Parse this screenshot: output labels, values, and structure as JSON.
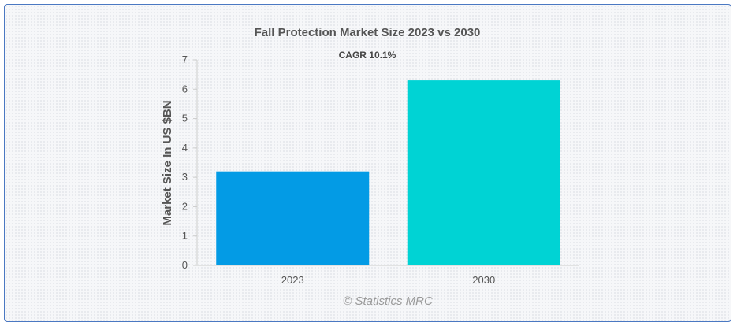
{
  "colors": {
    "bar_2023": "#039be5",
    "bar_2030": "#00d3d4",
    "frame": "#4a78c2"
  },
  "chart_data": {
    "type": "bar",
    "title": "Fall Protection Market Size 2023 vs 2030",
    "subtitle": "CAGR 10.1%",
    "xlabel": "",
    "ylabel": "Market Size In US $BN",
    "categories": [
      "2023",
      "2030"
    ],
    "values": [
      3.2,
      6.3
    ],
    "ylim": [
      0,
      7
    ],
    "yticks": [
      "0",
      "1",
      "2",
      "3",
      "4",
      "5",
      "6",
      "7"
    ],
    "grid": false,
    "legend": "none",
    "credit": "© Statistics MRC"
  }
}
